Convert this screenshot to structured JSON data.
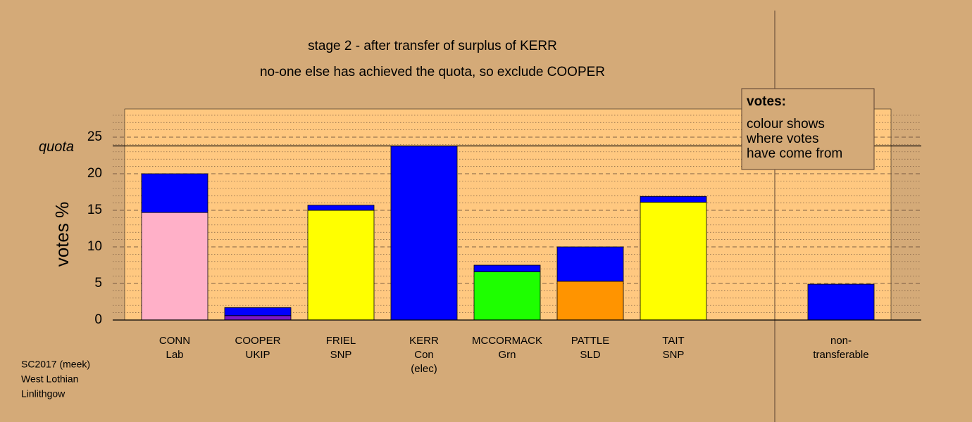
{
  "chart_data": {
    "type": "stacked-bar",
    "title": "stage 2 - after transfer of surplus of KERR",
    "subtitle": "no-one else has achieved the quota, so exclude COOPER",
    "y_label": "votes %",
    "categories": [
      [
        "CONN",
        "Lab"
      ],
      [
        "COOPER",
        "UKIP"
      ],
      [
        "FRIEL",
        "SNP"
      ],
      [
        "KERR",
        "Con",
        "(elec)"
      ],
      [
        "MCCORMACK",
        "Grn"
      ],
      [
        "PATTLE",
        "SLD"
      ],
      [
        "TAIT",
        "SNP"
      ],
      [
        "non-",
        "transferable"
      ]
    ],
    "series": [
      {
        "colors": [
          "#ffb0c8",
          "#7b16c8",
          "#ffff00",
          "#0000ff",
          "#1eff00",
          "#ff9400",
          "#ffff00",
          null
        ],
        "values": [
          14.7,
          0.6,
          15.0,
          23.8,
          6.6,
          5.3,
          16.1,
          null
        ]
      },
      {
        "color": "#0000ff",
        "values": [
          5.3,
          1.1,
          0.7,
          null,
          0.9,
          4.7,
          0.8,
          4.9
        ]
      }
    ],
    "quota": {
      "value": 23.8,
      "label": "quota"
    },
    "ylim": [
      0,
      28.85
    ],
    "yticks": [
      0,
      5,
      10,
      15,
      20,
      25
    ],
    "yticks_minor": [
      1,
      2,
      3,
      4,
      6,
      7,
      8,
      9,
      11,
      12,
      13,
      14,
      16,
      17,
      18,
      19,
      21,
      22,
      23,
      24,
      26,
      27,
      28
    ],
    "grid": true,
    "legend": {
      "title": "votes:",
      "lines": [
        "colour shows",
        "where votes",
        "have come from"
      ]
    },
    "footer": [
      "SC2017 (meek)",
      "West Lothian",
      "Linlithgow"
    ]
  }
}
